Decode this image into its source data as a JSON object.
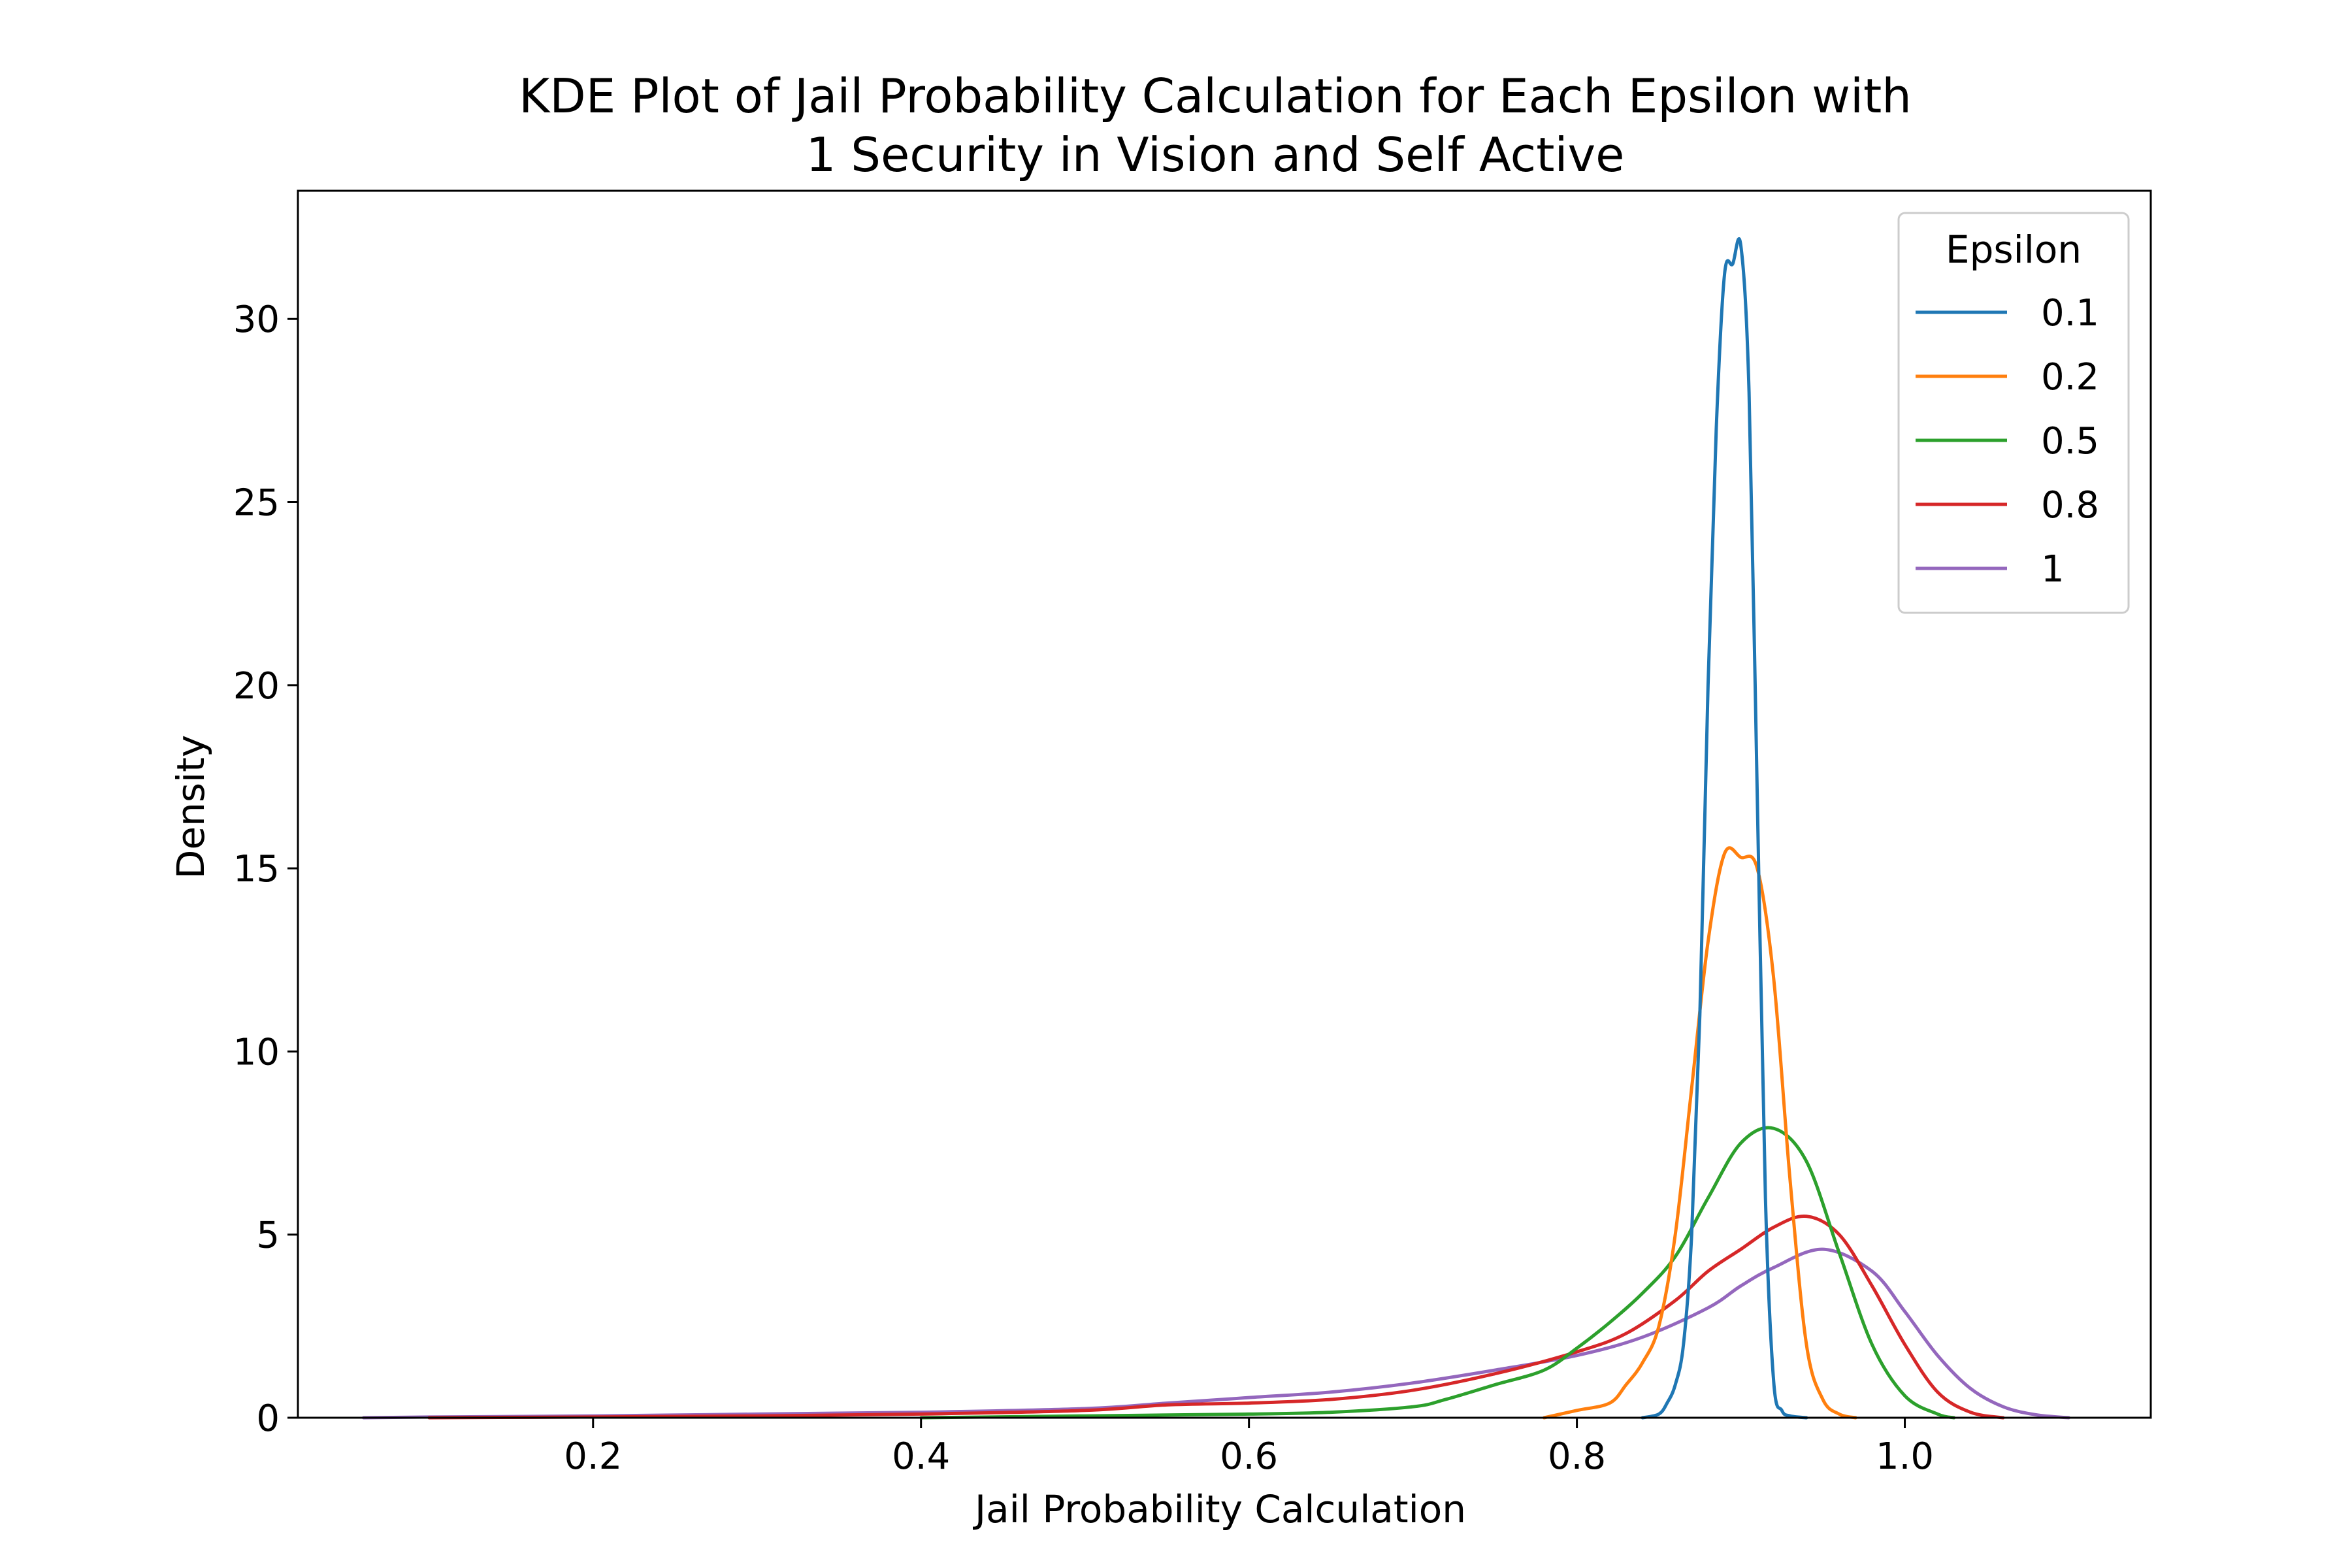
{
  "chart_data": {
    "type": "line",
    "title_line1": "KDE Plot of Jail Probability Calculation for Each Epsilon with",
    "title_line2": "1 Security in Vision and Self Active",
    "xlabel": "Jail Probability Calculation",
    "ylabel": "Density",
    "xlim": [
      0.02,
      1.15
    ],
    "ylim": [
      0,
      33.5
    ],
    "xticks": [
      0.2,
      0.4,
      0.6,
      0.8,
      1.0
    ],
    "xtick_labels": [
      "0.2",
      "0.4",
      "0.6",
      "0.8",
      "1.0"
    ],
    "yticks": [
      0,
      5,
      10,
      15,
      20,
      25,
      30
    ],
    "ytick_labels": [
      "0",
      "5",
      "10",
      "15",
      "20",
      "25",
      "30"
    ],
    "grid": false,
    "legend": {
      "title": "Epsilon",
      "placement": "top-right"
    },
    "series": [
      {
        "name": "0.1",
        "color": "#1f77b4",
        "x": [
          0.84,
          0.85,
          0.855,
          0.86,
          0.865,
          0.87,
          0.875,
          0.88,
          0.885,
          0.89,
          0.895,
          0.9,
          0.905,
          0.91,
          0.915,
          0.92,
          0.925,
          0.93,
          0.94
        ],
        "y": [
          0,
          0.1,
          0.4,
          0.9,
          2.0,
          5.0,
          11.0,
          20.0,
          27.0,
          31.2,
          31.5,
          32.0,
          28.0,
          17.0,
          6.0,
          1.0,
          0.2,
          0.05,
          0
        ]
      },
      {
        "name": "0.2",
        "color": "#ff7f0e",
        "x": [
          0.78,
          0.8,
          0.82,
          0.83,
          0.84,
          0.85,
          0.86,
          0.87,
          0.88,
          0.89,
          0.9,
          0.91,
          0.92,
          0.93,
          0.94,
          0.95,
          0.96,
          0.97
        ],
        "y": [
          0,
          0.2,
          0.4,
          0.9,
          1.5,
          2.5,
          5.0,
          9.0,
          13.0,
          15.4,
          15.3,
          15.0,
          12.0,
          6.5,
          2.0,
          0.5,
          0.1,
          0
        ]
      },
      {
        "name": "0.5",
        "color": "#2ca02c",
        "x": [
          0.4,
          0.5,
          0.6,
          0.65,
          0.7,
          0.72,
          0.75,
          0.78,
          0.8,
          0.82,
          0.84,
          0.86,
          0.88,
          0.9,
          0.92,
          0.94,
          0.96,
          0.98,
          1.0,
          1.02,
          1.03
        ],
        "y": [
          0,
          0.05,
          0.1,
          0.15,
          0.3,
          0.5,
          0.9,
          1.3,
          1.9,
          2.6,
          3.4,
          4.4,
          6.0,
          7.5,
          7.9,
          7.0,
          4.5,
          2.0,
          0.6,
          0.1,
          0
        ]
      },
      {
        "name": "0.8",
        "color": "#d62728",
        "x": [
          0.1,
          0.2,
          0.3,
          0.4,
          0.5,
          0.55,
          0.6,
          0.65,
          0.7,
          0.75,
          0.8,
          0.83,
          0.86,
          0.88,
          0.9,
          0.92,
          0.94,
          0.96,
          0.98,
          1.0,
          1.02,
          1.04,
          1.06
        ],
        "y": [
          0,
          0.02,
          0.05,
          0.1,
          0.2,
          0.35,
          0.4,
          0.5,
          0.75,
          1.2,
          1.8,
          2.3,
          3.2,
          4.0,
          4.6,
          5.2,
          5.5,
          5.0,
          3.6,
          2.0,
          0.7,
          0.15,
          0
        ]
      },
      {
        "name": "1",
        "color": "#9467bd",
        "x": [
          0.06,
          0.1,
          0.2,
          0.3,
          0.4,
          0.5,
          0.55,
          0.6,
          0.65,
          0.7,
          0.75,
          0.8,
          0.84,
          0.88,
          0.9,
          0.92,
          0.95,
          0.98,
          1.0,
          1.02,
          1.04,
          1.06,
          1.08,
          1.1
        ],
        "y": [
          0,
          0.02,
          0.05,
          0.1,
          0.15,
          0.25,
          0.4,
          0.55,
          0.7,
          0.95,
          1.3,
          1.7,
          2.2,
          3.0,
          3.6,
          4.1,
          4.6,
          4.0,
          2.9,
          1.7,
          0.8,
          0.3,
          0.08,
          0
        ]
      }
    ]
  }
}
